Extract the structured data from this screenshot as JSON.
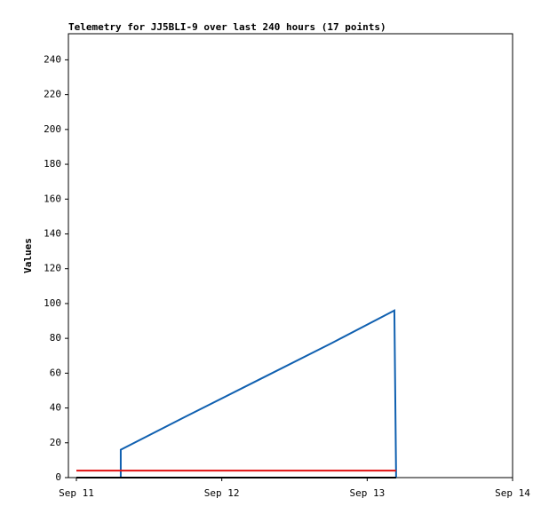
{
  "chart_data": {
    "type": "line",
    "title": "Telemetry for JJ5BLI-9 over last 240 hours (17 points)",
    "ylabel": "Values",
    "series": [
      {
        "color": "#1060b0",
        "x": [
          11.305,
          11.305,
          11.75,
          12.25,
          12.75,
          13.187,
          13.19,
          13.199
        ],
        "values": [
          0,
          16,
          35,
          56,
          77,
          96,
          72,
          0
        ]
      },
      {
        "color": "#e01010",
        "x": [
          11.0,
          13.199
        ],
        "values": [
          4,
          4
        ]
      },
      {
        "color": "#000000",
        "x": [
          11.0,
          13.199
        ],
        "values": [
          0,
          0
        ]
      }
    ],
    "xlim": [
      10.945,
      14
    ],
    "xticks": [
      {
        "value": 11,
        "label": "Sep 11"
      },
      {
        "value": 12,
        "label": "Sep 12"
      },
      {
        "value": 13,
        "label": "Sep 13"
      },
      {
        "value": 14,
        "label": "Sep 14"
      }
    ],
    "ylim": [
      0,
      255
    ],
    "yticks": [
      0,
      20,
      40,
      60,
      80,
      100,
      120,
      140,
      160,
      180,
      200,
      220,
      240
    ],
    "grid": false
  }
}
